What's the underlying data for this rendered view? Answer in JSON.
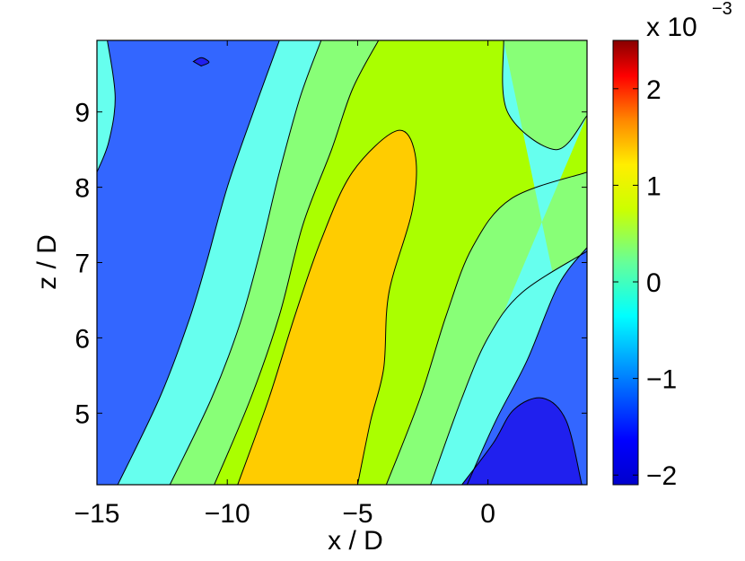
{
  "chart_data": {
    "type": "heatmap",
    "subtype": "filled-contour",
    "title": "",
    "xlabel": "x / D",
    "ylabel": "z / D",
    "xlim": [
      -15,
      3.8
    ],
    "ylim": [
      4.05,
      9.95
    ],
    "x_ticks": [
      -15,
      -10,
      -5,
      0
    ],
    "x_tick_labels": [
      "−15",
      "−10",
      "−5",
      "0"
    ],
    "y_ticks": [
      5,
      6,
      7,
      8,
      9
    ],
    "y_tick_labels": [
      "5",
      "6",
      "7",
      "8",
      "9"
    ],
    "colorbar": {
      "range": [
        -2.1,
        2.5
      ],
      "ticks": [
        -2,
        -1,
        0,
        1,
        2
      ],
      "tick_labels": [
        "−2",
        "−1",
        "0",
        "1",
        "2"
      ],
      "multiplier_base": "x 10",
      "multiplier_exponent": "−3",
      "colormap": "jet"
    },
    "levels": [
      {
        "name": "level-below-minus-1.5",
        "color": "#2020ee"
      },
      {
        "name": "level-minus-1.5-to-minus-1",
        "color": "#3366ff"
      },
      {
        "name": "level-minus-1-to-minus-0.5",
        "color": "#66ffee"
      },
      {
        "name": "level-minus-0.5-to-0",
        "color": "#88ff77"
      },
      {
        "name": "level-0-to-0.5",
        "color": "#aaff00"
      },
      {
        "name": "level-0.5-to-1",
        "color": "#ffcc00"
      }
    ],
    "contour_boundaries": [
      {
        "name": "blue-left-edge",
        "points": [
          [
            -14.6,
            9.95
          ],
          [
            -14.3,
            9.2
          ],
          [
            -14.55,
            8.6
          ],
          [
            -15,
            8.2
          ]
        ]
      },
      {
        "name": "bound-left-1",
        "points": [
          [
            -14.2,
            4.05
          ],
          [
            -12.6,
            5.2
          ],
          [
            -11.5,
            6.2
          ],
          [
            -10.8,
            7.0
          ],
          [
            -10.0,
            8.0
          ],
          [
            -9.0,
            9.0
          ],
          [
            -8.0,
            9.95
          ]
        ]
      },
      {
        "name": "bound-left-2",
        "points": [
          [
            -12.2,
            4.05
          ],
          [
            -10.6,
            5.2
          ],
          [
            -9.5,
            6.2
          ],
          [
            -8.7,
            7.2
          ],
          [
            -8.0,
            8.2
          ],
          [
            -7.2,
            9.2
          ],
          [
            -6.4,
            9.95
          ]
        ]
      },
      {
        "name": "bound-left-3",
        "points": [
          [
            -10.5,
            4.05
          ],
          [
            -9.1,
            5.2
          ],
          [
            -8.0,
            6.3
          ],
          [
            -7.1,
            7.5
          ],
          [
            -6.0,
            8.5
          ],
          [
            -5.2,
            9.3
          ],
          [
            -4.2,
            9.95
          ]
        ]
      },
      {
        "name": "bound-yellow-core",
        "points": [
          [
            -9.6,
            4.05
          ],
          [
            -8.4,
            5.2
          ],
          [
            -7.4,
            6.3
          ],
          [
            -6.4,
            7.3
          ],
          [
            -5.2,
            8.2
          ],
          [
            -3.5,
            8.75
          ],
          [
            -2.8,
            8.45
          ],
          [
            -2.9,
            7.7
          ],
          [
            -3.8,
            6.6
          ],
          [
            -4.0,
            5.6
          ],
          [
            -4.5,
            4.9
          ],
          [
            -5.0,
            4.05
          ]
        ]
      },
      {
        "name": "bound-right-1",
        "points": [
          [
            0.6,
            9.95
          ],
          [
            0.75,
            9.0
          ],
          [
            2.6,
            8.5
          ],
          [
            3.8,
            8.95
          ]
        ]
      },
      {
        "name": "bound-right-2",
        "points": [
          [
            -3.9,
            4.05
          ],
          [
            -2.6,
            5.2
          ],
          [
            -1.6,
            6.3
          ],
          [
            -0.6,
            7.2
          ],
          [
            0.9,
            7.85
          ],
          [
            3.8,
            8.2
          ]
        ]
      },
      {
        "name": "bound-right-3",
        "points": [
          [
            -2.2,
            4.05
          ],
          [
            -1.0,
            5.2
          ],
          [
            0.0,
            6.0
          ],
          [
            1.3,
            6.6
          ],
          [
            3.8,
            7.15
          ]
        ]
      },
      {
        "name": "bound-right-4",
        "points": [
          [
            -0.8,
            4.05
          ],
          [
            0.3,
            4.9
          ],
          [
            1.5,
            5.7
          ],
          [
            2.7,
            6.7
          ],
          [
            3.8,
            7.2
          ]
        ]
      },
      {
        "name": "bound-lower-right-blob",
        "points": [
          [
            -1.0,
            4.05
          ],
          [
            0.2,
            4.6
          ],
          [
            1.0,
            5.05
          ],
          [
            2.1,
            5.2
          ],
          [
            3.0,
            4.9
          ],
          [
            3.6,
            4.05
          ]
        ]
      },
      {
        "name": "small-island",
        "points": [
          [
            -11.3,
            9.67
          ],
          [
            -11.0,
            9.72
          ],
          [
            -10.7,
            9.66
          ],
          [
            -11.0,
            9.61
          ]
        ]
      }
    ]
  }
}
